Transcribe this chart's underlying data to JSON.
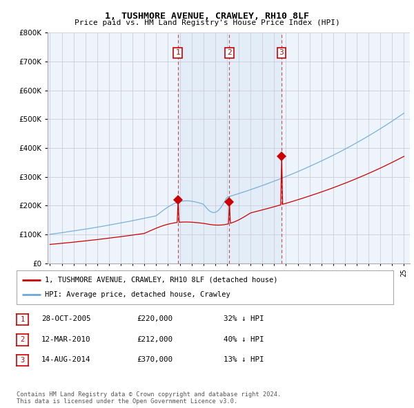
{
  "title": "1, TUSHMORE AVENUE, CRAWLEY, RH10 8LF",
  "subtitle": "Price paid vs. HM Land Registry's House Price Index (HPI)",
  "x_start_year": 1995,
  "x_end_year": 2025,
  "ylim": [
    0,
    800000
  ],
  "yticks": [
    0,
    100000,
    200000,
    300000,
    400000,
    500000,
    600000,
    700000,
    800000
  ],
  "sale_color": "#cc0000",
  "hpi_color": "#6fa8d6",
  "vline_color": "#cc0000",
  "shade_color": "#ddeeff",
  "transaction_markers": [
    {
      "label": "1",
      "year": 2005.83,
      "price": 220000,
      "date": "28-OCT-2005"
    },
    {
      "label": "2",
      "year": 2010.2,
      "price": 212000,
      "date": "12-MAR-2010"
    },
    {
      "label": "3",
      "year": 2014.62,
      "price": 370000,
      "date": "14-AUG-2014"
    }
  ],
  "legend_entries": [
    "1, TUSHMORE AVENUE, CRAWLEY, RH10 8LF (detached house)",
    "HPI: Average price, detached house, Crawley"
  ],
  "table_rows": [
    [
      "1",
      "28-OCT-2005",
      "£220,000",
      "32% ↓ HPI"
    ],
    [
      "2",
      "12-MAR-2010",
      "£212,000",
      "40% ↓ HPI"
    ],
    [
      "3",
      "14-AUG-2014",
      "£370,000",
      "13% ↓ HPI"
    ]
  ],
  "footer": "Contains HM Land Registry data © Crown copyright and database right 2024.\nThis data is licensed under the Open Government Licence v3.0.",
  "background_color": "#ffffff",
  "grid_color": "#ccccdd",
  "chart_bg": "#eef4fb"
}
